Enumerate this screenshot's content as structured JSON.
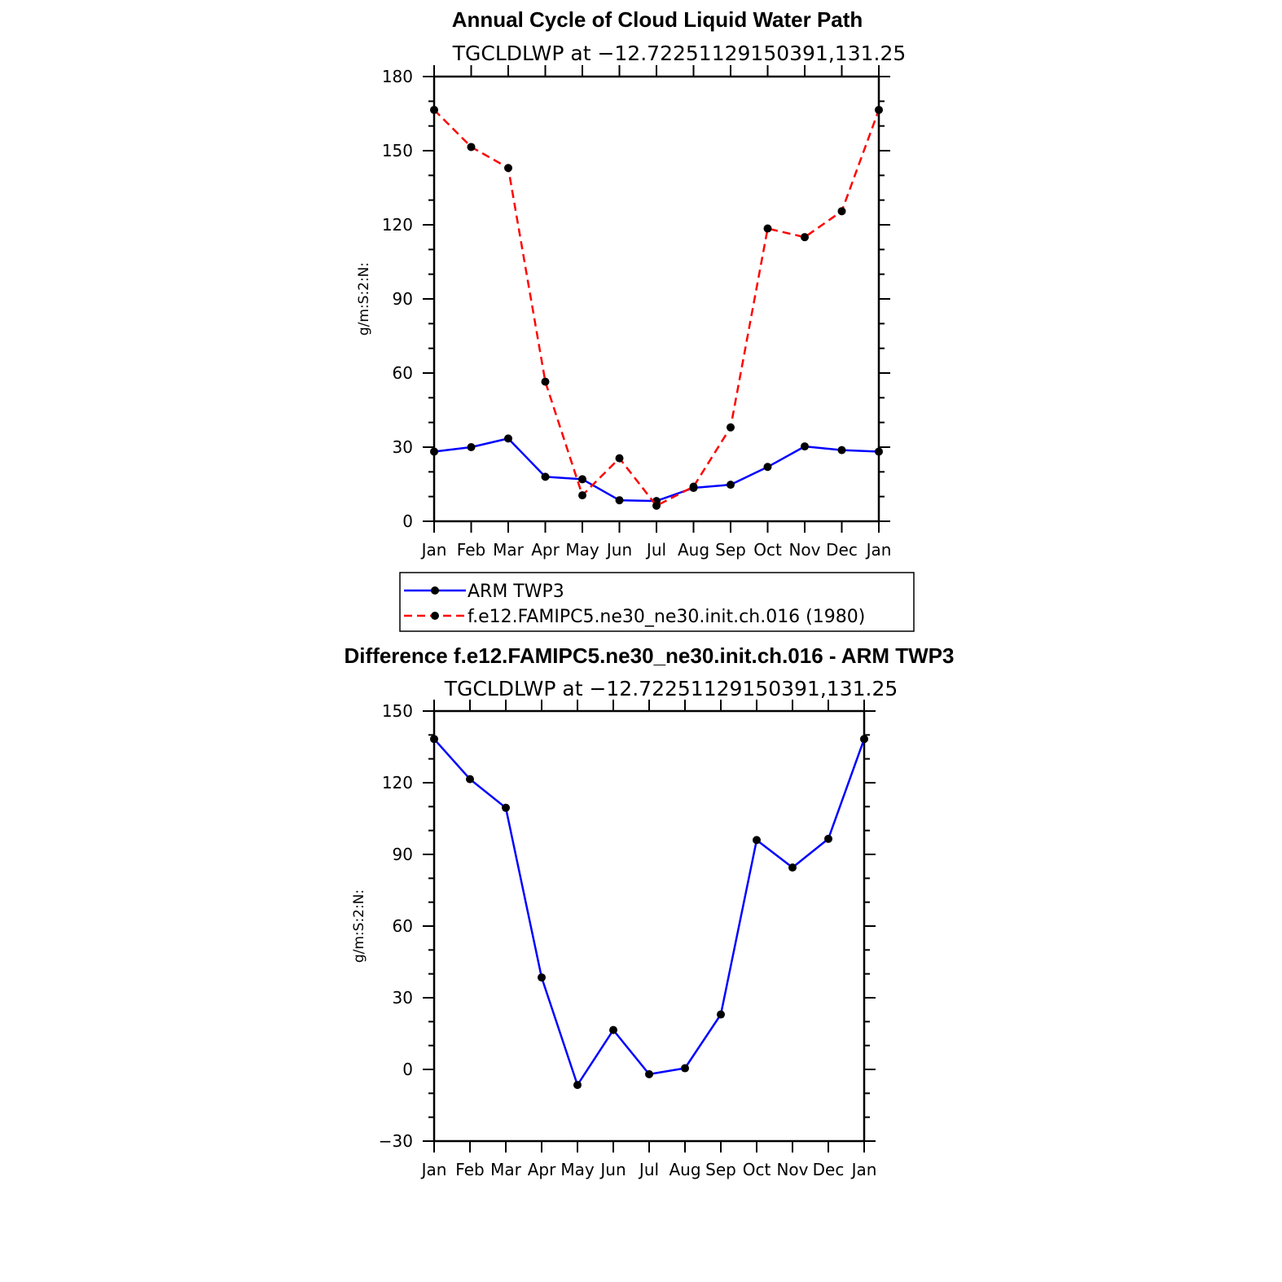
{
  "chart_data": [
    {
      "type": "line",
      "title": "Annual Cycle of Cloud Liquid Water Path",
      "subtitle": "TGCLDLWP at −12.72251129150391,131.25",
      "ylabel": "g/m:S:2:N:",
      "xlabel": "",
      "categories": [
        "Jan",
        "Feb",
        "Mar",
        "Apr",
        "May",
        "Jun",
        "Jul",
        "Aug",
        "Sep",
        "Oct",
        "Nov",
        "Dec",
        "Jan"
      ],
      "ylim": [
        0,
        180
      ],
      "yticks": [
        0,
        30,
        60,
        90,
        120,
        150,
        180
      ],
      "series": [
        {
          "name": "ARM TWP3",
          "color": "#0000ff",
          "dash": "solid",
          "values": [
            28.2,
            30.0,
            33.5,
            18.0,
            17.0,
            8.5,
            8.2,
            13.5,
            14.8,
            22.0,
            30.3,
            28.8,
            28.2
          ]
        },
        {
          "name": "f.e12.FAMIPC5.ne30_ne30.init.ch.016 (1980)",
          "color": "#ff0000",
          "dash": "dashed",
          "values": [
            166.5,
            151.5,
            143.0,
            56.5,
            10.5,
            25.5,
            6.3,
            14.0,
            38.0,
            118.5,
            115.0,
            125.5,
            166.5
          ]
        }
      ],
      "legend": {
        "position": "below",
        "entries": [
          "ARM TWP3",
          "f.e12.FAMIPC5.ne30_ne30.init.ch.016 (1980)"
        ]
      }
    },
    {
      "type": "line",
      "title": "Difference f.e12.FAMIPC5.ne30_ne30.init.ch.016 - ARM TWP3",
      "subtitle": "TGCLDLWP at −12.72251129150391,131.25",
      "ylabel": "g/m:S:2:N:",
      "xlabel": "",
      "categories": [
        "Jan",
        "Feb",
        "Mar",
        "Apr",
        "May",
        "Jun",
        "Jul",
        "Aug",
        "Sep",
        "Oct",
        "Nov",
        "Dec",
        "Jan"
      ],
      "ylim": [
        -30,
        150
      ],
      "yticks": [
        -30,
        0,
        30,
        60,
        90,
        120,
        150
      ],
      "series": [
        {
          "name": "Difference",
          "color": "#0000ff",
          "dash": "solid",
          "values": [
            138.3,
            121.5,
            109.5,
            38.5,
            -6.5,
            16.5,
            -2.0,
            0.5,
            23.0,
            96.0,
            84.5,
            96.5,
            138.3
          ]
        }
      ]
    }
  ]
}
